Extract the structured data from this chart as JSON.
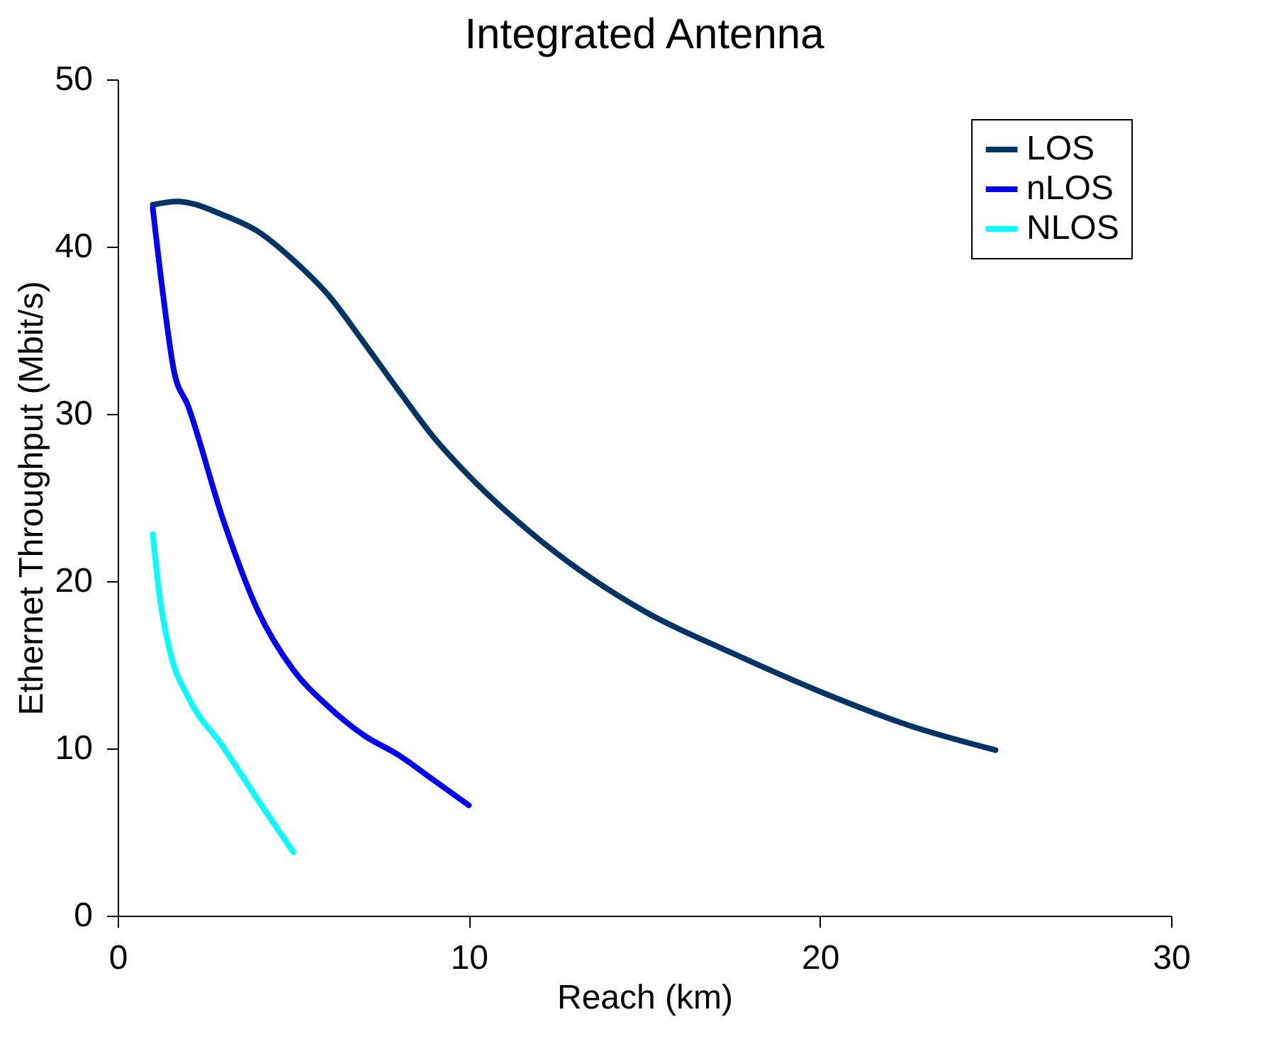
{
  "chart_data": {
    "type": "line",
    "title": "Integrated Antenna",
    "xlabel": "Reach (km)",
    "ylabel": "Ethernet Throughput (Mbit/s)",
    "xlim": [
      0,
      30
    ],
    "xticks": [
      0,
      10,
      20,
      30
    ],
    "ylim": [
      0,
      50
    ],
    "yticks": [
      0,
      10,
      20,
      30,
      40,
      50
    ],
    "grid": false,
    "legend": "top right",
    "marker": "none",
    "line_style": "solid",
    "series": [
      {
        "name": "LOS",
        "color": "#003366",
        "x": [
          1,
          1.7,
          3,
          4,
          5,
          6,
          7,
          8,
          9,
          10,
          12,
          15,
          17.5,
          20,
          22.5,
          25
        ],
        "values": [
          42.5,
          42.7,
          41.9,
          40.9,
          39.2,
          37.1,
          34.3,
          31.4,
          28.6,
          26.3,
          22.5,
          18.2,
          15.7,
          13.4,
          11.4,
          9.9
        ]
      },
      {
        "name": "nLOS",
        "color": "#0000ff",
        "x": [
          1,
          1.3,
          1.6,
          2,
          3,
          4,
          5,
          6,
          7,
          8,
          9,
          10
        ],
        "values": [
          42.3,
          37,
          32.6,
          30.5,
          23.7,
          18.2,
          14.7,
          12.5,
          10.8,
          9.6,
          8.1,
          6.6
        ]
      },
      {
        "name": "NLOS",
        "color": "#00ffff",
        "x": [
          1,
          1.2,
          1.5,
          2,
          3,
          4,
          5
        ],
        "values": [
          22.8,
          19,
          15.7,
          13.1,
          10.1,
          6.9,
          3.8
        ]
      }
    ]
  }
}
